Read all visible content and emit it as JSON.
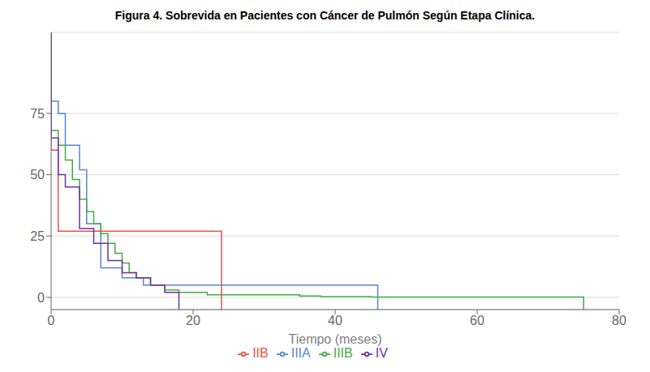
{
  "chart_data": {
    "type": "line",
    "title": "Figura 4. Sobrevida en Pacientes con Cáncer de Pulmón Según Etapa Clínica.",
    "xlabel": "Tiempo (meses)",
    "xlim": [
      0,
      80
    ],
    "ylim": [
      -5,
      108
    ],
    "xticks": [
      0,
      20,
      40,
      60,
      80
    ],
    "yticks": [
      0,
      25,
      50,
      75
    ],
    "grid": true,
    "legend": "bottom",
    "series": [
      {
        "name": "IIB",
        "color": "#e8524a",
        "x": [
          0,
          0,
          1,
          1,
          3,
          3,
          24,
          24
        ],
        "values": [
          108,
          60,
          60,
          27,
          27,
          27,
          27,
          -5
        ]
      },
      {
        "name": "IIIA",
        "color": "#5588cc",
        "x": [
          0,
          0,
          1,
          1,
          2,
          2,
          4,
          4,
          5,
          5,
          7,
          7,
          10,
          10,
          13,
          13,
          46,
          46
        ],
        "values": [
          108,
          80,
          80,
          75,
          75,
          62,
          62,
          52,
          52,
          30,
          30,
          12,
          12,
          8,
          8,
          5,
          5,
          -5
        ]
      },
      {
        "name": "IIIB",
        "color": "#44aa44",
        "x": [
          0,
          0,
          1,
          1,
          2,
          2,
          3,
          3,
          4,
          4,
          5,
          5,
          6,
          6,
          7,
          7,
          8,
          8,
          9,
          9,
          10,
          10,
          11,
          11,
          12,
          12,
          14,
          14,
          16,
          16,
          18,
          18,
          22,
          22,
          35,
          35,
          38,
          38,
          45,
          45,
          75,
          75
        ],
        "values": [
          108,
          68,
          68,
          62,
          62,
          56,
          56,
          48,
          48,
          40,
          40,
          35,
          35,
          30,
          30,
          26,
          26,
          22,
          22,
          18,
          18,
          14,
          14,
          10,
          10,
          8,
          8,
          5,
          5,
          3,
          3,
          2,
          2,
          1,
          1,
          0.5,
          0.5,
          0.3,
          0.3,
          0.1,
          0.1,
          -5
        ]
      },
      {
        "name": "IV",
        "color": "#7030a0",
        "x": [
          0,
          0,
          1,
          1,
          2,
          2,
          4,
          4,
          6,
          6,
          8,
          8,
          10,
          10,
          12,
          12,
          14,
          14,
          16,
          16,
          18,
          18
        ],
        "values": [
          108,
          65,
          65,
          50,
          50,
          45,
          45,
          28,
          28,
          22,
          22,
          15,
          15,
          10,
          10,
          8,
          8,
          5,
          5,
          2,
          2,
          -5
        ]
      }
    ]
  }
}
